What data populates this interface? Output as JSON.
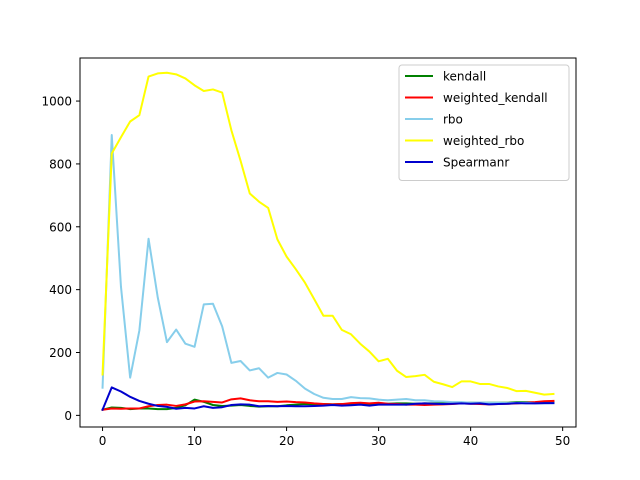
{
  "chart_data": {
    "type": "line",
    "title": "",
    "xlabel": "",
    "ylabel": "",
    "xlim": [
      -2.45,
      51.45
    ],
    "ylim": [
      -37,
      1137
    ],
    "xticks": [
      0,
      10,
      20,
      30,
      40,
      50
    ],
    "yticks": [
      0,
      200,
      400,
      600,
      800,
      1000
    ],
    "xtick_labels": [
      "0",
      "10",
      "20",
      "30",
      "40",
      "50"
    ],
    "ytick_labels": [
      "0",
      "200",
      "400",
      "600",
      "800",
      "1000"
    ],
    "grid": false,
    "legend_position": "upper right",
    "x": [
      0,
      1,
      2,
      3,
      4,
      5,
      6,
      7,
      8,
      9,
      10,
      11,
      12,
      13,
      14,
      15,
      16,
      17,
      18,
      19,
      20,
      21,
      22,
      23,
      24,
      25,
      26,
      27,
      28,
      29,
      30,
      31,
      32,
      33,
      34,
      35,
      36,
      37,
      38,
      39,
      40,
      41,
      42,
      43,
      44,
      45,
      46,
      47,
      48,
      49
    ],
    "series": [
      {
        "name": "kendall",
        "color": "#008000",
        "values": [
          18,
          25,
          24,
          20,
          22,
          22,
          20,
          20,
          24,
          32,
          50,
          43,
          33,
          30,
          31,
          33,
          30,
          28,
          29,
          29,
          32,
          34,
          36,
          35,
          36,
          35,
          36,
          36,
          37,
          36,
          37,
          37,
          38,
          38,
          37,
          38,
          38,
          39,
          40,
          40,
          40,
          40,
          40,
          40,
          40,
          42,
          42,
          41,
          42,
          42
        ]
      },
      {
        "name": "weighted_kendall",
        "color": "#ff0000",
        "values": [
          18,
          22,
          21,
          22,
          22,
          29,
          33,
          34,
          30,
          35,
          44,
          45,
          43,
          41,
          51,
          54,
          48,
          45,
          45,
          43,
          44,
          42,
          41,
          38,
          36,
          35,
          36,
          39,
          40,
          38,
          40,
          37,
          36,
          34,
          34,
          33,
          34,
          35,
          36,
          38,
          37,
          36,
          35,
          36,
          37,
          38,
          40,
          42,
          45,
          46
        ]
      },
      {
        "name": "rbo",
        "color": "#87ceeb",
        "values": [
          88,
          892,
          410,
          120,
          270,
          562,
          375,
          233,
          273,
          228,
          218,
          353,
          355,
          283,
          167,
          173,
          143,
          150,
          120,
          135,
          130,
          110,
          85,
          68,
          56,
          52,
          52,
          58,
          55,
          54,
          50,
          48,
          50,
          52,
          48,
          48,
          45,
          44,
          42,
          42,
          40,
          41,
          40,
          40,
          39,
          40,
          40,
          38,
          38,
          39
        ]
      },
      {
        "name": "weighted_rbo",
        "color": "#ffff00",
        "values": [
          130,
          833,
          885,
          935,
          955,
          1078,
          1088,
          1090,
          1085,
          1072,
          1050,
          1032,
          1037,
          1027,
          907,
          810,
          706,
          680,
          660,
          560,
          505,
          465,
          422,
          370,
          317,
          317,
          272,
          258,
          228,
          203,
          172,
          180,
          142,
          122,
          125,
          129,
          107,
          99,
          90,
          108,
          108,
          100,
          100,
          92,
          87,
          77,
          78,
          72,
          66,
          68
        ]
      },
      {
        "name": "Spearmanr",
        "color": "#0000cd",
        "values": [
          18,
          89,
          76,
          59,
          46,
          37,
          30,
          27,
          21,
          24,
          22,
          29,
          24,
          26,
          33,
          35,
          34,
          29,
          30,
          29,
          30,
          29,
          29,
          30,
          31,
          33,
          31,
          32,
          34,
          31,
          34,
          34,
          34,
          34,
          37,
          38,
          37,
          36,
          37,
          38,
          37,
          38,
          35,
          36,
          37,
          39,
          38,
          38,
          39,
          39
        ]
      }
    ]
  }
}
